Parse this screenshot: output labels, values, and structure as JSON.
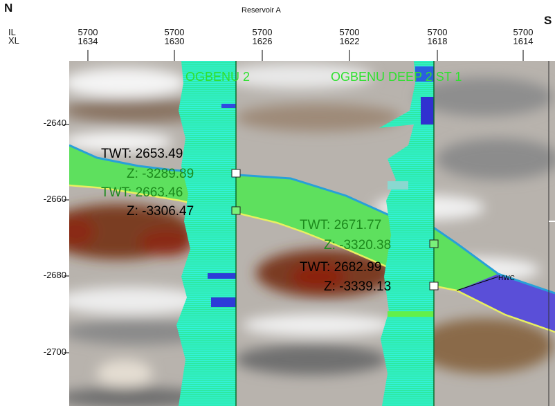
{
  "header": {
    "left_compass": "N",
    "right_compass": "S",
    "title": "Reservoir A",
    "row_label_il": "IL",
    "row_label_xl": "XL",
    "columns": [
      {
        "il": "5700",
        "xl": "1634"
      },
      {
        "il": "5700",
        "xl": "1630"
      },
      {
        "il": "5700",
        "xl": "1626"
      },
      {
        "il": "5700",
        "xl": "1622"
      },
      {
        "il": "5700",
        "xl": "1618"
      },
      {
        "il": "5700",
        "xl": "1614"
      }
    ]
  },
  "y_axis": {
    "ticks": [
      "-2640",
      "-2660",
      "-2680",
      "-2700"
    ]
  },
  "wells": [
    {
      "name": "OGBENU 2"
    },
    {
      "name": "OGBENU DEEP 2 ST 1"
    }
  ],
  "markers": [
    {
      "twt": "TWT: 2653.49",
      "z": "Z: -3289.89"
    },
    {
      "twt": "TWT: 2663.46",
      "z": "Z: -3306.47"
    },
    {
      "twt": "TWT: 2671.77",
      "z": "Z: -3320.38"
    },
    {
      "twt": "TWT: 2682.99",
      "z": "Z: -3339.13"
    }
  ],
  "contact_label": "HWC",
  "colors": {
    "reservoir_fill": "#5ee05e",
    "top_horizon": "#28a0d8",
    "base_horizon": "#e8f060",
    "water_zone": "#5a4fd8",
    "well_log": "#22e8a8"
  }
}
